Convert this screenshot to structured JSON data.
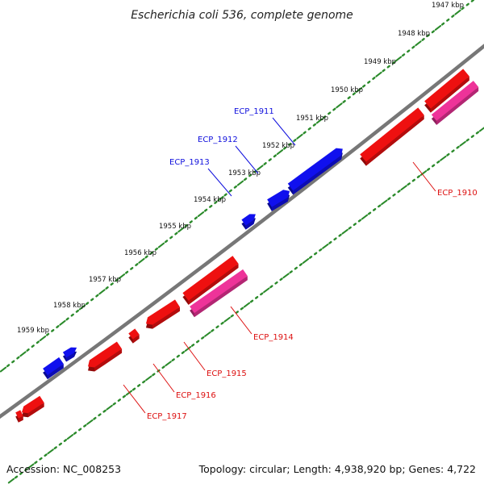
{
  "header": {
    "title": "Escherichia coli 536, complete genome"
  },
  "footer": {
    "accession": "Accession: NC_008253",
    "summary": "Topology: circular; Length: 4,938,920 bp; Genes: 4,722"
  },
  "colors": {
    "backbone": "#777777",
    "ruler": "#2a8a2a",
    "forward_gene": "#1010ee",
    "reverse_gene": "#ee1010",
    "reverse_gene_alt": "#ee3399",
    "forward_label": "#1010dd",
    "reverse_label": "#dd1010"
  },
  "ruler": {
    "ticks": [
      "1947 kbp",
      "1948 kbp",
      "1949 kbp",
      "1950 kbp",
      "1951 kbp",
      "1952 kbp",
      "1953 kbp",
      "1954 kbp",
      "1955 kbp",
      "1956 kbp",
      "1957 kbp",
      "1958 kbp",
      "1959 kbp"
    ]
  },
  "genes": {
    "labeled": [
      {
        "name": "ECP_1910",
        "strand": "reverse"
      },
      {
        "name": "ECP_1911",
        "strand": "forward"
      },
      {
        "name": "ECP_1912",
        "strand": "forward"
      },
      {
        "name": "ECP_1913",
        "strand": "forward"
      },
      {
        "name": "ECP_1914",
        "strand": "reverse"
      },
      {
        "name": "ECP_1915",
        "strand": "reverse"
      },
      {
        "name": "ECP_1916",
        "strand": "reverse"
      },
      {
        "name": "ECP_1917",
        "strand": "reverse"
      }
    ]
  }
}
